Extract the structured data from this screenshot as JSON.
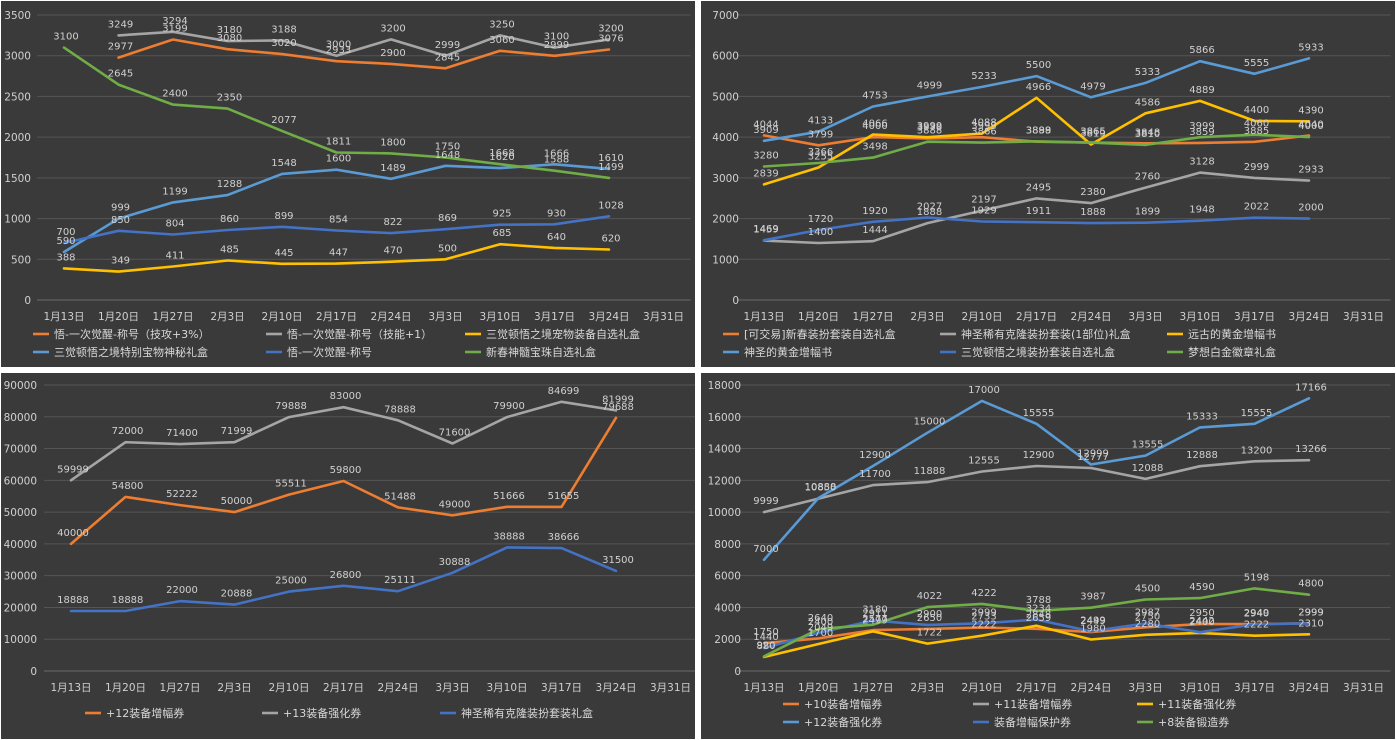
{
  "chart_data": [
    {
      "type": "line",
      "categories": [
        "1月13日",
        "1月20日",
        "1月27日",
        "2月3日",
        "2月10日",
        "2月17日",
        "2月24日",
        "3月3日",
        "3月10日",
        "3月17日",
        "3月24日",
        "3月31日"
      ],
      "ylim": [
        0,
        3500
      ],
      "yticks": [
        0,
        500,
        1000,
        1500,
        2000,
        2500,
        3000,
        3500
      ],
      "legend": "bottom",
      "series": [
        {
          "name": "悟-一次觉醒-称号（技攻+3%）",
          "color": "#ed7d31",
          "values": [
            null,
            2977,
            3199,
            3080,
            3020,
            2933,
            2900,
            2845,
            3060,
            2999,
            3076,
            null
          ]
        },
        {
          "name": "悟-一次觉醒-称号（技能+1）",
          "color": "#a5a5a5",
          "values": [
            null,
            3249,
            3294,
            3180,
            3188,
            3000,
            3200,
            2999,
            3250,
            3100,
            3200,
            null
          ]
        },
        {
          "name": "三觉顿悟之境宠物装备自选礼盒",
          "color": "#ffc000",
          "values": [
            388,
            349,
            411,
            485,
            445,
            447,
            470,
            500,
            685,
            640,
            620,
            null
          ]
        },
        {
          "name": "三觉顿悟之境特别宝物神秘礼盒",
          "color": "#5b9bd5",
          "values": [
            590,
            999,
            1199,
            1288,
            1548,
            1600,
            1489,
            1648,
            1620,
            1666,
            1610,
            null
          ]
        },
        {
          "name": "悟-一次觉醒-称号",
          "color": "#4472c4",
          "values": [
            700,
            850,
            804,
            860,
            899,
            854,
            822,
            869,
            925,
            930,
            1028,
            null
          ]
        },
        {
          "name": "新春神髓宝珠自选礼盒",
          "color": "#70ad47",
          "values": [
            3100,
            2645,
            2400,
            2350,
            2077,
            1811,
            1800,
            1750,
            1668,
            1588,
            1499,
            null
          ]
        }
      ]
    },
    {
      "type": "line",
      "categories": [
        "1月13日",
        "1月20日",
        "1月27日",
        "2月3日",
        "2月10日",
        "2月17日",
        "2月24日",
        "3月3日",
        "3月10日",
        "3月17日",
        "3月24日",
        "3月31日"
      ],
      "ylim": [
        0,
        7000
      ],
      "yticks": [
        0,
        1000,
        2000,
        3000,
        4000,
        5000,
        6000,
        7000
      ],
      "legend": "bottom",
      "series": [
        {
          "name": "[可交易]新春装扮套装自选礼盒",
          "color": "#ed7d31",
          "values": [
            4044,
            3799,
            4000,
            3970,
            3999,
            3888,
            3865,
            3848,
            3859,
            3885,
            4040,
            null
          ]
        },
        {
          "name": "神圣稀有克隆装扮套装(1部位)礼盒",
          "color": "#a5a5a5",
          "values": [
            1459,
            1400,
            1444,
            1888,
            2197,
            2495,
            2380,
            2760,
            3128,
            2999,
            2933,
            null
          ]
        },
        {
          "name": "远古的黄金增幅书",
          "color": "#ffc000",
          "values": [
            2839,
            3255,
            4066,
            3999,
            4088,
            4966,
            3819,
            4586,
            4889,
            4400,
            4390,
            null
          ]
        },
        {
          "name": "神圣的黄金增幅书",
          "color": "#5b9bd5",
          "values": [
            3909,
            4133,
            4753,
            4999,
            5233,
            5500,
            4979,
            5333,
            5866,
            5555,
            5933,
            null
          ]
        },
        {
          "name": "三觉顿悟之境装扮套装自选礼盒",
          "color": "#4472c4",
          "values": [
            1469,
            1720,
            1920,
            2027,
            1929,
            1911,
            1888,
            1899,
            1948,
            2022,
            2000,
            null
          ]
        },
        {
          "name": "梦想白金徽章礼盒",
          "color": "#70ad47",
          "values": [
            3280,
            3366,
            3498,
            3888,
            3866,
            3899,
            3865,
            3810,
            3999,
            4060,
            4000,
            null
          ]
        }
      ]
    },
    {
      "type": "line",
      "categories": [
        "1月13日",
        "1月20日",
        "1月27日",
        "2月3日",
        "2月10日",
        "2月17日",
        "2月24日",
        "3月3日",
        "3月10日",
        "3月17日",
        "3月24日",
        "3月31日"
      ],
      "ylim": [
        0,
        90000
      ],
      "yticks": [
        0,
        10000,
        20000,
        30000,
        40000,
        50000,
        60000,
        70000,
        80000,
        90000
      ],
      "legend": "bottom",
      "series": [
        {
          "name": "+12装备增幅券",
          "color": "#ed7d31",
          "values": [
            40000,
            54800,
            52222,
            50000,
            55511,
            59800,
            51488,
            49000,
            51666,
            51655,
            79688,
            null
          ]
        },
        {
          "name": "+13装备强化券",
          "color": "#a5a5a5",
          "values": [
            59999,
            72000,
            71400,
            71999,
            79888,
            83000,
            78888,
            71600,
            79900,
            84699,
            81999,
            null
          ]
        },
        {
          "name": "神圣稀有克隆装扮套装礼盒",
          "color": "#4472c4",
          "values": [
            18888,
            18888,
            22000,
            20888,
            25000,
            26800,
            25111,
            30888,
            38888,
            38666,
            31500,
            null
          ]
        }
      ]
    },
    {
      "type": "line",
      "categories": [
        "1月13日",
        "1月20日",
        "1月27日",
        "2月3日",
        "2月10日",
        "2月17日",
        "2月24日",
        "3月3日",
        "3月10日",
        "3月17日",
        "3月24日",
        "3月31日"
      ],
      "ylim": [
        0,
        18000
      ],
      "yticks": [
        0,
        2000,
        4000,
        6000,
        8000,
        10000,
        12000,
        14000,
        16000,
        18000
      ],
      "legend": "bottom",
      "series": [
        {
          "name": "+10装备增幅券",
          "color": "#ed7d31",
          "values": [
            1750,
            2049,
            2577,
            2650,
            2733,
            2659,
            2449,
            2750,
            2950,
            2949,
            2999,
            null
          ]
        },
        {
          "name": "+11装备增幅券",
          "color": "#a5a5a5",
          "values": [
            9999,
            10850,
            11700,
            11888,
            12555,
            12900,
            12777,
            12088,
            12888,
            13200,
            13266,
            null
          ]
        },
        {
          "name": "+11装备强化券",
          "color": "#ffc000",
          "values": [
            880,
            1700,
            2499,
            1722,
            2222,
            2848,
            1980,
            2280,
            2400,
            2222,
            2310,
            null
          ]
        },
        {
          "name": "+12装备强化券",
          "color": "#5b9bd5",
          "values": [
            7000,
            10888,
            12900,
            15000,
            17000,
            15555,
            12999,
            13555,
            15333,
            15555,
            17166,
            null
          ]
        },
        {
          "name": "装备增幅保护券",
          "color": "#4472c4",
          "values": [
            1440,
            2400,
            3180,
            2900,
            2999,
            3234,
            2499,
            2987,
            2442,
            2940,
            2999,
            null
          ]
        },
        {
          "name": "+8装备锻造券",
          "color": "#70ad47",
          "values": [
            920,
            2640,
            2911,
            4022,
            4222,
            3788,
            3987,
            4500,
            4590,
            5198,
            4800,
            null
          ]
        }
      ]
    }
  ]
}
